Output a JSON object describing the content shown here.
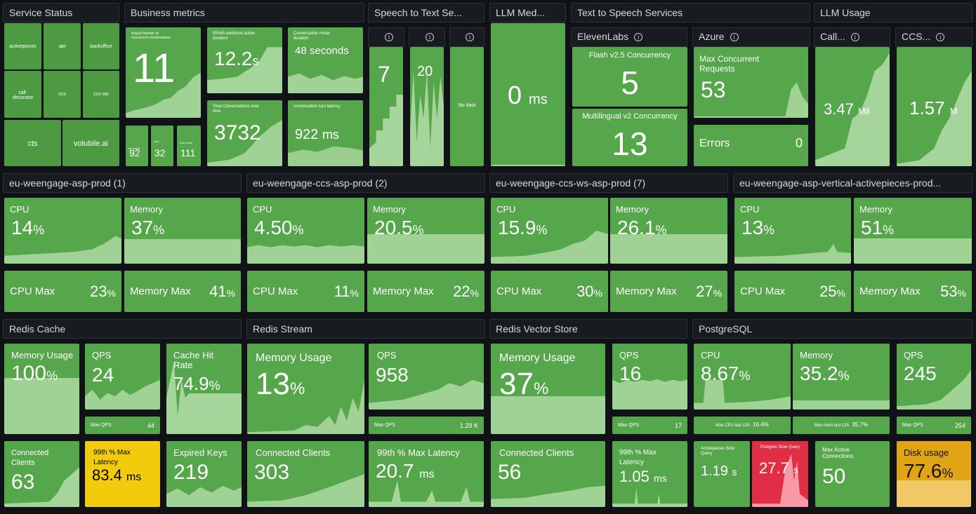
{
  "sections": {
    "service_status": "Service Status",
    "business_metrics": "Business metrics",
    "speech_to_text": "Speech to Text Se...",
    "llm_med": "LLM Med...",
    "tts": "Text to Speech Services",
    "llm_usage": "LLM Usage",
    "asp1": "eu-weengage-asp-prod (1)",
    "asp2": "eu-weengage-ccs-asp-prod (2)",
    "asp3": "eu-weengage-ccs-ws-asp-prod (7)",
    "asp4": "eu-weengage-asp-vertical-activepieces-prod...",
    "redis_cache": "Redis Cache",
    "redis_stream": "Redis Stream",
    "redis_vector": "Redis Vector Store",
    "postgres": "PostgreSQL"
  },
  "services": [
    "activepieces",
    "api",
    "backoffice",
    "call-decorator",
    "ccs",
    "ccs-ws",
    "cts",
    "volubile.ai"
  ],
  "business": {
    "concurrent_label": "Actual Number of concurrent conversations",
    "concurrent_value": "11",
    "webhook_label": "95%th webhook action duration",
    "webhook_value": "12.2",
    "webhook_unit": "s",
    "conv_mean_label": "Conversation mean duration",
    "conv_mean_value": "48 seconds",
    "total_conv_label": "Total Conversations over time",
    "total_conv_value": "3732",
    "turn_latency_label": "conversation turn latency",
    "turn_latency_value": "922",
    "turn_latency_unit": "ms",
    "small1_label": "min value",
    "small1_value": "92",
    "small2_label": "max",
    "small2_value": "32",
    "small3_label": "max value",
    "small3_value": "111"
  },
  "stt": {
    "v1": "7",
    "v2": "20",
    "v3": "No data"
  },
  "llm_med": {
    "value": "0",
    "unit": "ms"
  },
  "tts": {
    "elevenlabs": "ElevenLabs",
    "azure": "Azure",
    "flash_label": "Flash v2.5 Concurrency",
    "flash_value": "5",
    "multi_label": "Multilingual v2 Concurrency",
    "multi_value": "13",
    "maxreq_label": "Max Concurrent Requests",
    "maxreq_value": "53",
    "errors_label": "Errors",
    "errors_value": "0"
  },
  "llm_usage": {
    "calls_title": "Call...",
    "calls_value": "3.47",
    "calls_unit": "Mil",
    "ccs_title": "CCS...",
    "ccs_value": "1.57",
    "ccs_unit": "M"
  },
  "asp": [
    {
      "cpu": "14",
      "mem": "37",
      "cpu_max": "23",
      "mem_max": "41"
    },
    {
      "cpu": "4.50",
      "mem": "20.5",
      "cpu_max": "11",
      "mem_max": "22"
    },
    {
      "cpu": "15.9",
      "mem": "26.1",
      "cpu_max": "30",
      "mem_max": "27"
    },
    {
      "cpu": "13",
      "mem": "51",
      "cpu_max": "25",
      "mem_max": "53"
    }
  ],
  "labels": {
    "cpu": "CPU",
    "memory": "Memory",
    "cpu_max": "CPU Max",
    "memory_max": "Memory Max",
    "pct": "%",
    "memory_usage": "Memory Usage",
    "qps": "QPS",
    "max_qps": "Max QPS",
    "connected_clients": "Connected Clients",
    "latency99": "99th % Max Latency",
    "ms": "ms"
  },
  "redis_cache": {
    "mem": "100",
    "qps": "24",
    "max_qps": "44",
    "hit_label": "Cache Hit Rate",
    "hit": "74.9",
    "clients": "63",
    "latency": "83.4",
    "expired_label": "Expired Keys",
    "expired": "219"
  },
  "redis_stream": {
    "mem": "13",
    "qps": "958",
    "max_qps": "1.29 K",
    "clients": "303",
    "latency": "20.7"
  },
  "redis_vector": {
    "mem": "37",
    "qps": "16",
    "max_qps": "17",
    "clients": "56",
    "latency": "1.05"
  },
  "postgres": {
    "cpu": "8.67",
    "mem": "35.2",
    "qps": "245",
    "max_cpu_label": "Max CPU last 12h",
    "max_cpu": "16.4%",
    "max_mem_label": "Max mem last 12h",
    "max_mem": "35.7%",
    "max_qps": "254",
    "ap_slow_label": "Activepieces Slow Query",
    "ap_slow": "1.19",
    "ap_slow_unit": "s",
    "pg_slow_label": "Postgres Slow Query",
    "pg_slow": "27.7",
    "pg_slow_unit": "s",
    "max_conn_label": "Max Active Connections",
    "max_conn": "50",
    "disk_label": "Disk usage",
    "disk": "77.6"
  }
}
